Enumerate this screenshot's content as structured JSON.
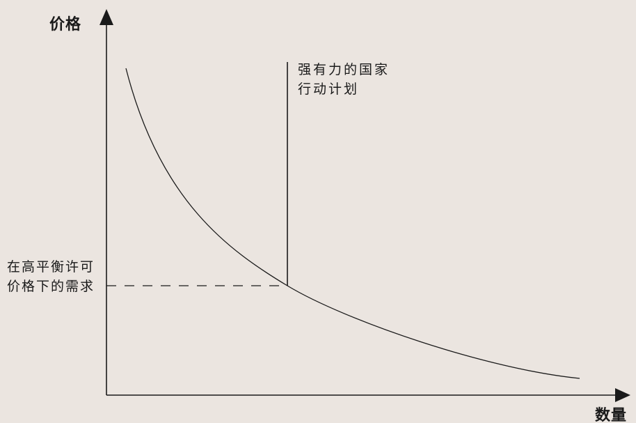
{
  "diagram": {
    "y_axis_title": "价格",
    "x_axis_title": "数量",
    "plan_label_line1": "强有力的国家",
    "plan_label_line2": "行动计划",
    "demand_label_line1": "在高平衡许可",
    "demand_label_line2": "价格下的需求",
    "colors": {
      "background": "#ebe5e0",
      "ink": "#1a1a1a"
    }
  }
}
